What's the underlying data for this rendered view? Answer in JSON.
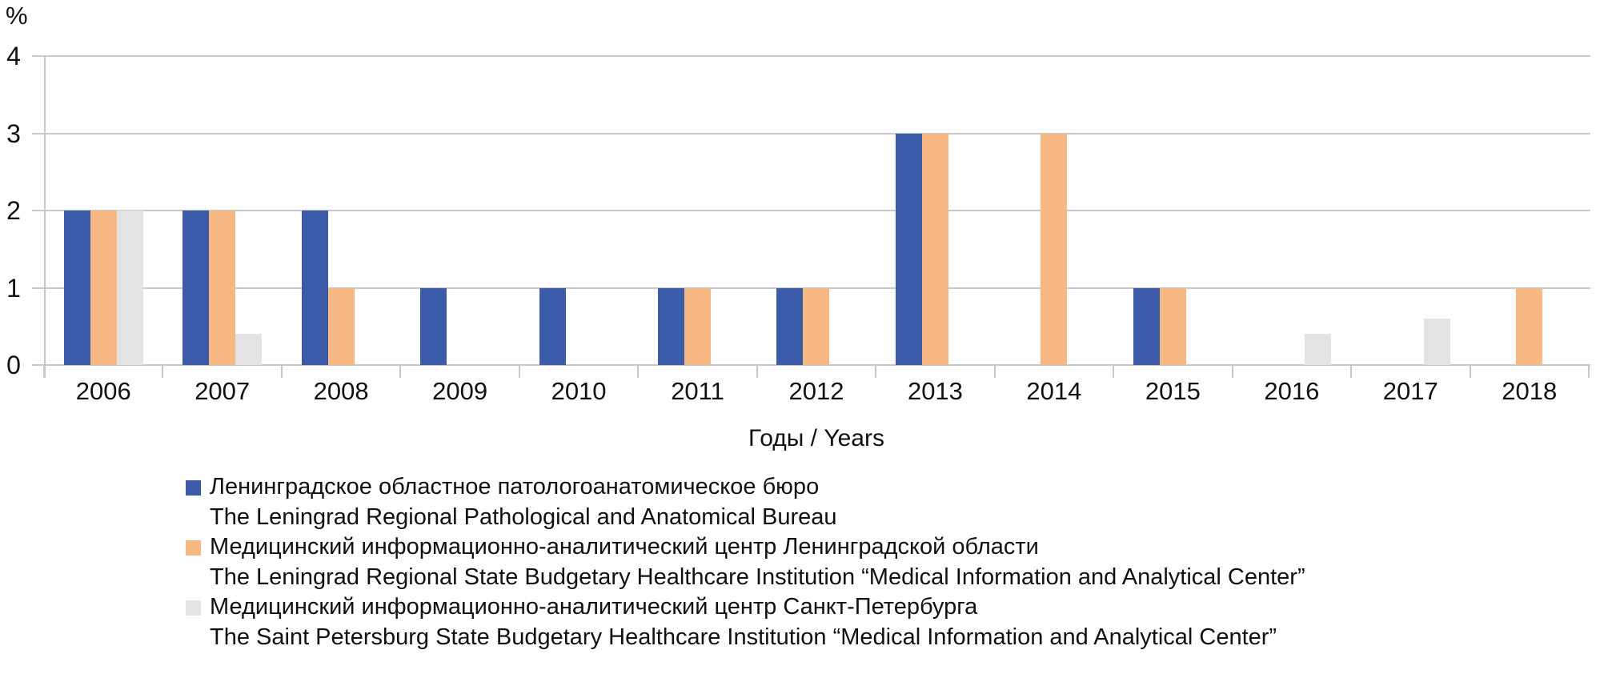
{
  "chart_data": {
    "type": "bar",
    "title": "",
    "xlabel": "Годы / Years",
    "ylabel": "%",
    "ylim": [
      0,
      4
    ],
    "y_ticks": [
      0,
      1,
      2,
      3,
      4
    ],
    "grid": true,
    "legend_position": "bottom",
    "categories": [
      "2006",
      "2007",
      "2008",
      "2009",
      "2010",
      "2011",
      "2012",
      "2013",
      "2014",
      "2015",
      "2016",
      "2017",
      "2018"
    ],
    "series": [
      {
        "key": "leningrad-pathological-bureau",
        "name_ru": "Ленинградское областное патологоанатомическое бюро",
        "name_en": "The Leningrad Regional Pathological and Anatomical Bureau",
        "color": "#3b5ba8",
        "values": [
          2,
          2,
          2,
          1,
          1,
          1,
          1,
          3,
          0,
          1,
          0,
          0,
          0
        ]
      },
      {
        "key": "leningrad-miac",
        "name_ru": "Медицинский информационно-аналитический центр Ленинградской области",
        "name_en": "The Leningrad Regional State Budgetary Healthcare Institution “Medical Information and Analytical Center”",
        "color": "#f7b984",
        "values": [
          2,
          2,
          1,
          0,
          0,
          1,
          1,
          3,
          3,
          1,
          0,
          0,
          1
        ]
      },
      {
        "key": "spb-miac",
        "name_ru": "Медицинский информационно-аналитический центр Санкт-Петербурга",
        "name_en": "The Saint Petersburg State Budgetary Healthcare Institution “Medical Information and Analytical Center”",
        "color": "#e3e3e5",
        "values": [
          2,
          0.4,
          0,
          0,
          0,
          0,
          0,
          0,
          0,
          0,
          0.4,
          0.6,
          0
        ]
      }
    ],
    "style": {
      "gridline_color": "#c9c9c9",
      "text_color": "#111111",
      "background": "#ffffff"
    }
  }
}
